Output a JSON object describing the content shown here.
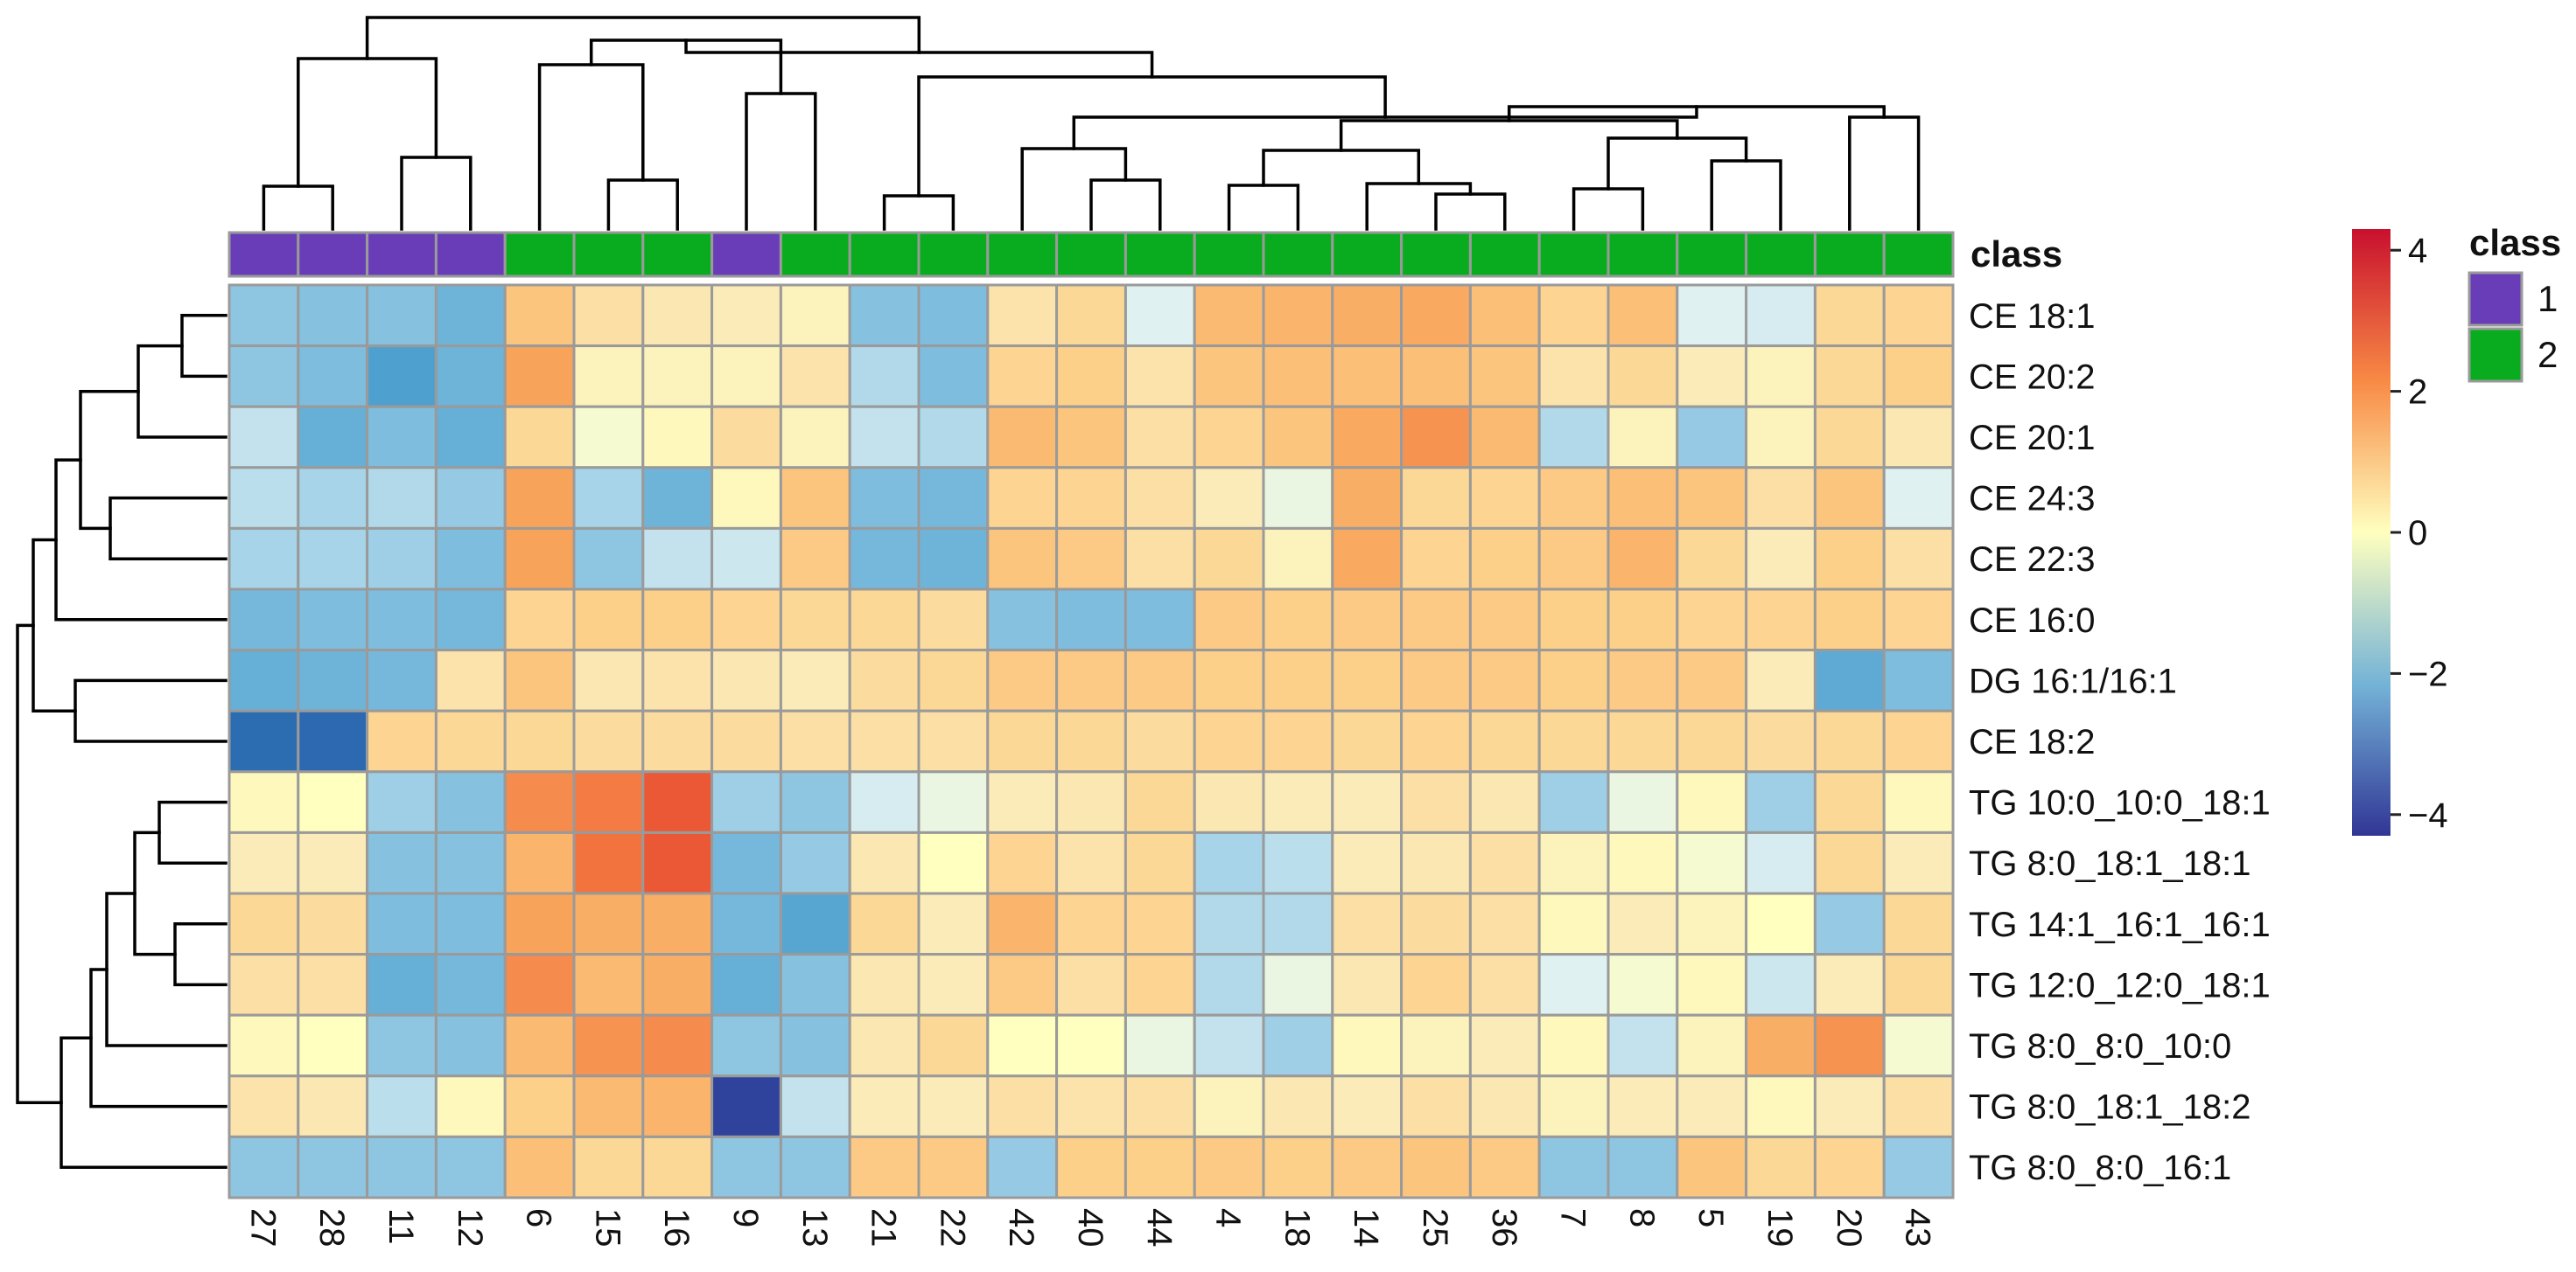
{
  "chart_data": {
    "type": "heatmap",
    "title": "",
    "annotation_title": "class",
    "annotation_row_label": "class",
    "columns": [
      "27",
      "28",
      "11",
      "12",
      "6",
      "15",
      "16",
      "9",
      "13",
      "21",
      "22",
      "42",
      "40",
      "44",
      "4",
      "18",
      "14",
      "25",
      "36",
      "7",
      "8",
      "5",
      "19",
      "20",
      "43"
    ],
    "column_class": [
      "1",
      "1",
      "1",
      "1",
      "2",
      "2",
      "2",
      "1",
      "2",
      "2",
      "2",
      "2",
      "2",
      "2",
      "2",
      "2",
      "2",
      "2",
      "2",
      "2",
      "2",
      "2",
      "2",
      "2",
      "2"
    ],
    "rows": [
      "CE 18:1",
      "CE 20:2",
      "CE 20:1",
      "CE 24:3",
      "CE 22:3",
      "CE 16:0",
      "DG 16:1/16:1",
      "CE 18:2",
      "TG 10:0_10:0_18:1",
      "TG 8:0_18:1_18:1",
      "TG 14:1_16:1_16:1",
      "TG 12:0_12:0_18:1",
      "TG 8:0_8:0_10:0",
      "TG 8:0_18:1_18:2",
      "TG 8:0_8:0_16:1"
    ],
    "values": [
      [
        -1.2,
        -1.3,
        -1.3,
        -1.6,
        1.2,
        0.6,
        0.4,
        0.3,
        0.2,
        -1.3,
        -1.4,
        0.5,
        0.8,
        -0.3,
        1.4,
        1.5,
        1.6,
        1.7,
        1.3,
        0.9,
        1.3,
        -0.3,
        -0.4,
        0.8,
        0.9
      ],
      [
        -1.2,
        -1.4,
        -2.0,
        -1.6,
        1.8,
        0.2,
        0.2,
        0.2,
        0.5,
        -0.8,
        -1.4,
        0.9,
        1.0,
        0.5,
        1.2,
        1.3,
        1.3,
        1.3,
        1.2,
        0.5,
        0.8,
        0.3,
        0.2,
        0.8,
        1.0
      ],
      [
        -0.6,
        -1.7,
        -1.4,
        -1.7,
        0.8,
        -0.1,
        0.1,
        0.7,
        0.2,
        -0.6,
        -0.8,
        1.4,
        1.2,
        0.6,
        0.9,
        1.2,
        1.7,
        2.0,
        1.4,
        -0.8,
        0.2,
        -1.1,
        0.2,
        0.8,
        0.4
      ],
      [
        -0.7,
        -0.9,
        -0.8,
        -1.1,
        1.8,
        -0.9,
        -1.6,
        0.1,
        1.2,
        -1.4,
        -1.5,
        0.9,
        0.9,
        0.6,
        0.3,
        -0.2,
        1.6,
        0.8,
        0.9,
        1.1,
        1.3,
        1.2,
        0.6,
        1.2,
        -0.3
      ],
      [
        -0.9,
        -0.9,
        -1.0,
        -1.4,
        1.8,
        -1.2,
        -0.6,
        -0.5,
        1.1,
        -1.5,
        -1.6,
        1.2,
        1.1,
        0.6,
        0.8,
        0.2,
        1.7,
        0.9,
        1.0,
        1.1,
        1.5,
        0.8,
        0.3,
        1.0,
        0.6
      ],
      [
        -1.5,
        -1.4,
        -1.4,
        -1.5,
        0.9,
        1.0,
        1.0,
        0.9,
        0.8,
        0.8,
        0.7,
        -1.3,
        -1.4,
        -1.4,
        1.1,
        1.0,
        1.1,
        1.1,
        1.1,
        1.0,
        1.0,
        0.9,
        0.9,
        1.0,
        0.9
      ],
      [
        -1.7,
        -1.6,
        -1.5,
        0.5,
        1.2,
        0.4,
        0.5,
        0.4,
        0.3,
        0.7,
        0.8,
        1.1,
        1.1,
        1.1,
        1.0,
        1.0,
        1.0,
        1.1,
        1.1,
        1.0,
        1.1,
        1.1,
        0.3,
        -1.8,
        -1.4
      ],
      [
        -3.0,
        -3.1,
        0.9,
        0.8,
        0.8,
        0.7,
        0.7,
        0.7,
        0.6,
        0.6,
        0.6,
        0.8,
        0.8,
        0.7,
        0.9,
        0.9,
        0.8,
        0.9,
        0.8,
        0.8,
        0.8,
        0.8,
        0.7,
        0.8,
        0.9
      ],
      [
        0.1,
        0.0,
        -1.0,
        -1.3,
        2.1,
        2.3,
        2.8,
        -1.0,
        -1.2,
        -0.4,
        -0.2,
        0.3,
        0.4,
        0.8,
        0.4,
        0.3,
        0.3,
        0.6,
        0.4,
        -1.0,
        -0.2,
        0.1,
        -1.0,
        0.8,
        0.1
      ],
      [
        0.3,
        0.3,
        -1.3,
        -1.3,
        1.5,
        2.4,
        2.8,
        -1.5,
        -1.1,
        0.4,
        0.0,
        0.9,
        0.5,
        0.8,
        -0.9,
        -0.7,
        0.3,
        0.4,
        0.6,
        0.2,
        0.1,
        -0.1,
        -0.4,
        0.8,
        0.3
      ],
      [
        0.8,
        0.7,
        -1.4,
        -1.4,
        1.8,
        1.6,
        1.6,
        -1.5,
        -1.9,
        0.8,
        0.3,
        1.5,
        0.9,
        0.9,
        -0.8,
        -0.8,
        0.6,
        0.7,
        0.6,
        0.1,
        0.3,
        0.2,
        0.0,
        -1.1,
        0.8
      ],
      [
        0.6,
        0.6,
        -1.7,
        -1.5,
        2.1,
        1.4,
        1.6,
        -1.7,
        -1.3,
        0.4,
        0.3,
        1.1,
        0.6,
        0.9,
        -0.8,
        -0.2,
        0.4,
        0.9,
        0.6,
        -0.3,
        -0.1,
        0.1,
        -0.5,
        0.3,
        0.8
      ],
      [
        0.1,
        0.0,
        -1.2,
        -1.3,
        1.4,
        2.0,
        2.1,
        -1.2,
        -1.3,
        0.4,
        0.8,
        0.0,
        0.0,
        -0.2,
        -0.6,
        -1.0,
        0.1,
        0.2,
        0.3,
        0.1,
        -0.6,
        0.2,
        1.6,
        2.0,
        -0.1
      ],
      [
        0.5,
        0.4,
        -0.7,
        0.1,
        1.0,
        1.4,
        1.5,
        -4.0,
        -0.6,
        0.3,
        0.3,
        0.6,
        0.5,
        0.6,
        0.2,
        0.4,
        0.3,
        0.6,
        0.4,
        0.2,
        0.3,
        0.3,
        0.1,
        0.3,
        0.6
      ],
      [
        -1.2,
        -1.2,
        -1.2,
        -1.2,
        1.3,
        0.8,
        0.8,
        -1.2,
        -1.2,
        1.1,
        1.1,
        -1.1,
        1.0,
        1.0,
        1.1,
        1.0,
        1.1,
        1.2,
        1.1,
        -1.2,
        -1.2,
        1.2,
        0.8,
        0.9,
        -1.1
      ]
    ],
    "color_scale": {
      "min": -4.3,
      "max": 4.3,
      "low_color": "#313695",
      "mid_color": "#ffffbf",
      "high_color": "#c8102e",
      "ticks": [
        "4",
        "2",
        "0",
        "−2",
        "−4"
      ],
      "tick_values": [
        4,
        2,
        0,
        -2,
        -4
      ]
    },
    "legend": {
      "title": "class",
      "entries": [
        {
          "label": "1",
          "color": "#6a3db8"
        },
        {
          "label": "2",
          "color": "#0aac1f"
        }
      ],
      "position": "right"
    },
    "row_dendrogram": "((((CE 18:1,CE 20:2),CE 20:1),(CE 24:3,CE 22:3)),CE 16:0),(DG 16:1/16:1,CE 18:2)),((((TG 10:0_10:0_18:1,TG 8:0_18:1_18:1),(TG 14:1_16:1_16:1,TG 12:0_12:0_18:1)),TG 8:0_8:0_10:0),TG 8:0_18:1_18:2),TG 8:0_8:0_16:1)",
    "column_dendrogram": "(((27,28),(11,12)),(((6,(15,16)),(9,13)),((21,22),((42,(40,44)),(((4,18),(14,(25,36))),((7,8),(5,19)),(20,43))))))"
  }
}
